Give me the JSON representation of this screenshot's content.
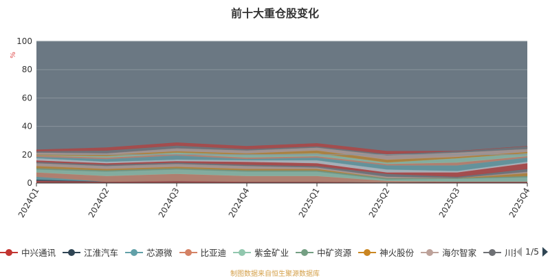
{
  "chart_data": {
    "type": "area",
    "stacked": true,
    "title": "前十大重仓股变化",
    "ylabel": "%",
    "ylim": [
      0,
      100
    ],
    "yticks": [
      0,
      20,
      40,
      60,
      80,
      100
    ],
    "grid": true,
    "plot_background": "#6b7883",
    "categories": [
      "2024Q1",
      "2024Q2",
      "2024Q3",
      "2024Q4",
      "2025Q1",
      "2025Q2",
      "2025Q3",
      "2025Q4"
    ],
    "series": [
      {
        "name": "中兴通讯",
        "color": "#c23531",
        "values": [
          1.5,
          1,
          1.5,
          1,
          1,
          0.5,
          1,
          1
        ]
      },
      {
        "name": "江淮汽车",
        "color": "#2f4554",
        "values": [
          1,
          0,
          0,
          0,
          0,
          0,
          0,
          0
        ]
      },
      {
        "name": "芯源微",
        "color": "#61a0a8",
        "values": [
          2,
          0,
          0,
          0,
          0,
          0,
          0,
          0
        ]
      },
      {
        "name": "比亚迪",
        "color": "#d48265",
        "values": [
          3,
          4,
          5,
          4,
          4,
          1,
          0,
          0
        ]
      },
      {
        "name": "紫金矿业",
        "color": "#91c7ae",
        "values": [
          2,
          3,
          3,
          3,
          3,
          1,
          2,
          3
        ]
      },
      {
        "name": "中矿资源",
        "color": "#749f83",
        "values": [
          1,
          1,
          1,
          1,
          1,
          1,
          0.5,
          1
        ]
      },
      {
        "name": "神火股份",
        "color": "#ca8622",
        "values": [
          1.5,
          1,
          1,
          1,
          1,
          0,
          0,
          2
        ]
      },
      {
        "name": "海尔智家",
        "color": "#bda29a",
        "values": [
          2,
          2,
          2,
          2,
          1,
          1,
          0,
          1
        ]
      },
      {
        "name": "川投能源",
        "color": "#6e7074",
        "values": [
          1,
          1,
          1,
          1,
          1,
          2,
          1,
          2
        ]
      },
      {
        "color": "#c23531",
        "values": [
          1,
          1,
          1,
          2,
          2,
          1,
          3,
          4
        ]
      },
      {
        "color": "#c4ccd3",
        "values": [
          1.5,
          1,
          1,
          1,
          2,
          2,
          1,
          1
        ]
      },
      {
        "color": "#61a0a8",
        "values": [
          1,
          2,
          3,
          1,
          2,
          3,
          4,
          3
        ]
      },
      {
        "color": "#d48265",
        "values": [
          1,
          1,
          1,
          1,
          1,
          1,
          2,
          1
        ]
      },
      {
        "color": "#91c7ae",
        "values": [
          0,
          1,
          1,
          2,
          2,
          1,
          3,
          2
        ]
      },
      {
        "color": "#ca8622",
        "values": [
          1,
          1,
          1,
          1,
          2,
          2,
          1,
          1
        ]
      },
      {
        "color": "#bda29a",
        "values": [
          1,
          1,
          2,
          2,
          2,
          3,
          3,
          2
        ]
      },
      {
        "color": "#6e7074",
        "values": [
          1,
          2,
          2,
          1,
          1,
          1,
          1,
          2
        ]
      },
      {
        "color": "#c23531",
        "values": [
          1,
          2,
          2,
          2,
          2,
          2,
          0,
          0
        ]
      }
    ]
  },
  "legend": {
    "page": "1/5"
  },
  "footer": "制图数据来自恒生聚源数据库"
}
